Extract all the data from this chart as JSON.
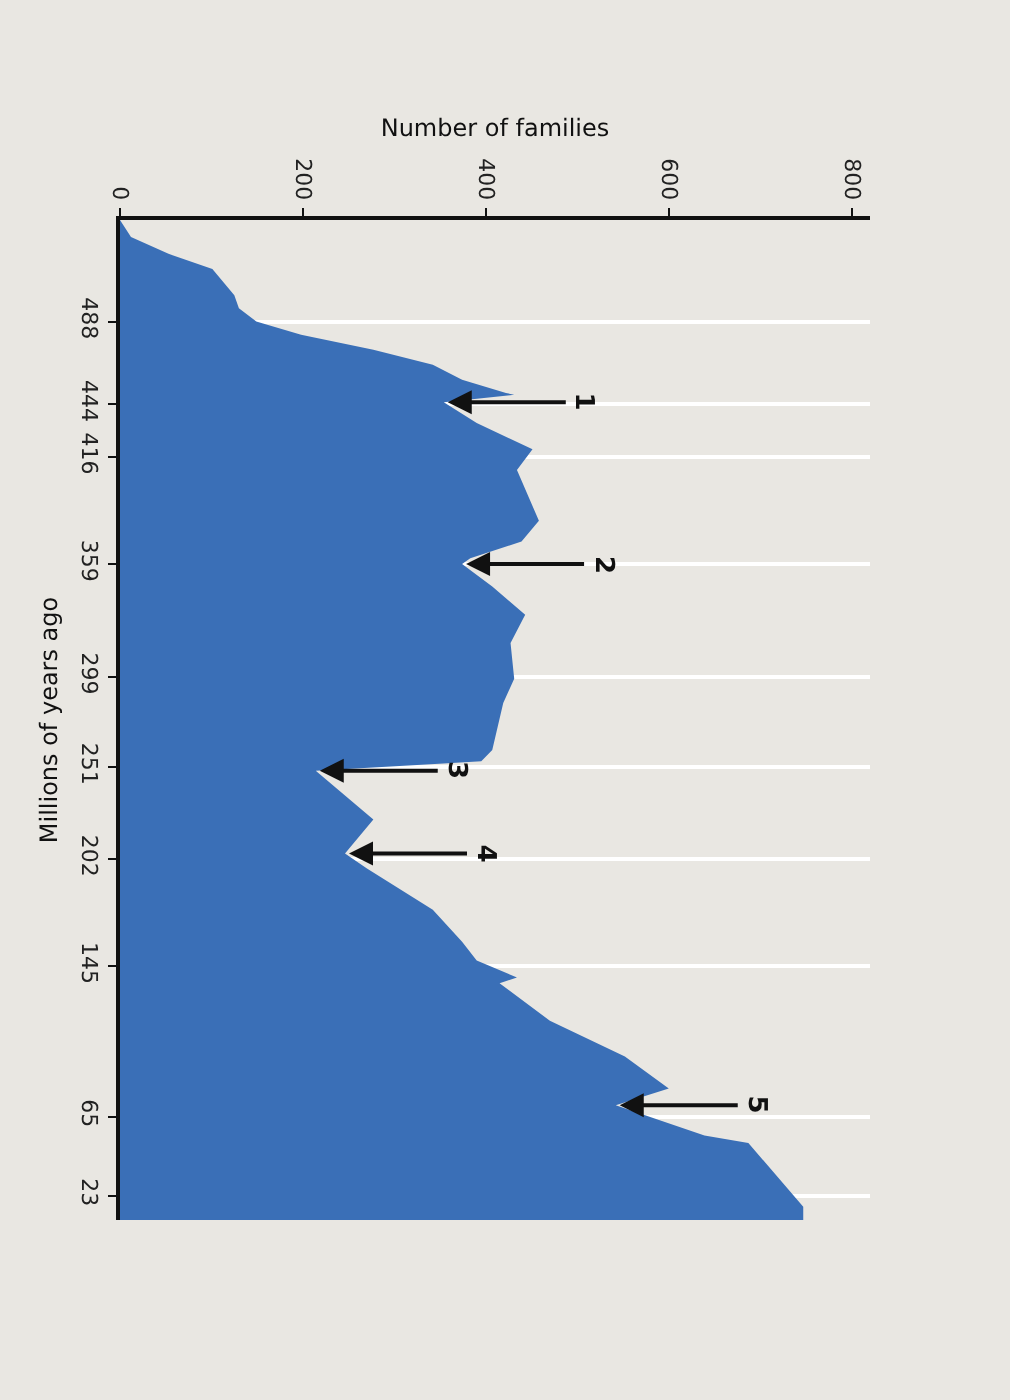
{
  "chart_data": {
    "type": "area",
    "xlabel": "Number of families",
    "ylabel": "Millions of years ago",
    "orientation": "horizontal",
    "x": [
      542,
      533,
      524,
      516,
      502,
      495,
      488,
      481,
      473,
      465,
      457,
      450,
      449,
      445,
      434,
      420,
      409,
      382,
      371,
      362,
      359,
      347,
      332,
      317,
      298,
      285,
      260,
      254,
      249,
      223,
      205,
      197,
      175,
      158,
      148,
      139,
      136,
      116,
      97,
      80,
      71,
      55,
      51,
      17,
      10
    ],
    "values": [
      0,
      12,
      53,
      101,
      125,
      130,
      149,
      198,
      277,
      342,
      374,
      422,
      431,
      354,
      390,
      451,
      434,
      458,
      439,
      383,
      374,
      407,
      443,
      427,
      431,
      419,
      407,
      395,
      214,
      277,
      246,
      270,
      342,
      374,
      390,
      434,
      415,
      470,
      552,
      600,
      542,
      639,
      687,
      747,
      747
    ],
    "color": "#3a6fb7",
    "xlim": [
      0,
      820
    ],
    "xticks": [
      0,
      200,
      400,
      600,
      800
    ],
    "ylim": [
      10,
      542
    ],
    "yticks": [
      488,
      444,
      416,
      359,
      299,
      251,
      202,
      145,
      65,
      23
    ],
    "grid": "y",
    "annotations": [
      {
        "text": "1",
        "x": 354,
        "y": 445
      },
      {
        "text": "2",
        "x": 374,
        "y": 359
      },
      {
        "text": "3",
        "x": 214,
        "y": 249
      },
      {
        "text": "4",
        "x": 246,
        "y": 205
      },
      {
        "text": "5",
        "x": 542,
        "y": 71
      }
    ]
  }
}
